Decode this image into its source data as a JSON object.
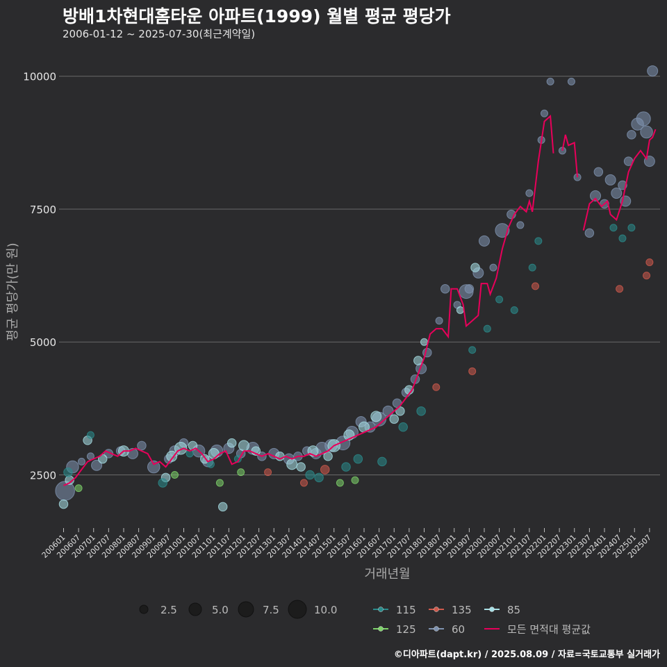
{
  "chart_data": {
    "type": "scatter",
    "title": "방배1차현대홈타운 아파트(1999) 월별 평균 평당가",
    "subtitle": "2006-01-12 ~ 2025-07-30(최근계약일)",
    "xlabel": "거래년월",
    "ylabel": "평균 평당가(만 원)",
    "ylim": [
      1500,
      10650
    ],
    "yticks": [
      2500,
      5000,
      7500,
      10000
    ],
    "xticks": [
      "200601",
      "200607",
      "200701",
      "200707",
      "200801",
      "200807",
      "200901",
      "200907",
      "201001",
      "201007",
      "201101",
      "201107",
      "201201",
      "201207",
      "201301",
      "201307",
      "201401",
      "201407",
      "201501",
      "201507",
      "201601",
      "201607",
      "201701",
      "201707",
      "201801",
      "201807",
      "201901",
      "201907",
      "202001",
      "202007",
      "202101",
      "202107",
      "202201",
      "202207",
      "202301",
      "202307",
      "202401",
      "202407",
      "202501",
      "202507"
    ],
    "size_legend": {
      "values": [
        "2.5",
        "5.0",
        "7.5",
        "10.0"
      ]
    },
    "color_legend": [
      {
        "name": "115",
        "color": "#2a8c8c"
      },
      {
        "name": "135",
        "color": "#d05a4c"
      },
      {
        "name": "85",
        "color": "#a8e0e6"
      },
      {
        "name": "125",
        "color": "#7ed36a"
      },
      {
        "name": "60",
        "color": "#7f93b0"
      },
      {
        "name": "모든 면적대 평균값",
        "color": "#e8005a"
      }
    ],
    "series": [
      {
        "name": "60",
        "points": [
          [
            2006.05,
            2200,
            9
          ],
          [
            2006.3,
            2650,
            5
          ],
          [
            2006.6,
            2750,
            2
          ],
          [
            2006.9,
            2850,
            2
          ],
          [
            2007.1,
            2680,
            4
          ],
          [
            2007.5,
            2900,
            3
          ],
          [
            2007.9,
            2950,
            3
          ],
          [
            2008.3,
            2900,
            4
          ],
          [
            2008.6,
            3050,
            3
          ],
          [
            2009.0,
            2650,
            5
          ],
          [
            2009.5,
            2800,
            3
          ],
          [
            2009.7,
            2950,
            4
          ],
          [
            2010.0,
            3100,
            3
          ],
          [
            2010.5,
            2950,
            5
          ],
          [
            2010.8,
            2750,
            4
          ],
          [
            2011.1,
            2950,
            5
          ],
          [
            2011.5,
            3000,
            4
          ],
          [
            2011.9,
            2900,
            3
          ],
          [
            2012.3,
            3000,
            5
          ],
          [
            2012.6,
            2850,
            3
          ],
          [
            2013.0,
            2900,
            4
          ],
          [
            2013.5,
            2800,
            4
          ],
          [
            2013.8,
            2850,
            3
          ],
          [
            2014.1,
            2950,
            3
          ],
          [
            2014.4,
            2900,
            4
          ],
          [
            2014.6,
            3000,
            5
          ],
          [
            2014.9,
            3050,
            5
          ],
          [
            2015.3,
            3100,
            6
          ],
          [
            2015.6,
            3300,
            5
          ],
          [
            2015.9,
            3500,
            4
          ],
          [
            2016.2,
            3400,
            4
          ],
          [
            2016.5,
            3550,
            6
          ],
          [
            2016.8,
            3700,
            4
          ],
          [
            2017.1,
            3850,
            3
          ],
          [
            2017.4,
            4050,
            3
          ],
          [
            2017.7,
            4300,
            3
          ],
          [
            2017.9,
            4500,
            4
          ],
          [
            2018.1,
            4800,
            3
          ],
          [
            2018.7,
            6000,
            3
          ],
          [
            2018.5,
            5400,
            2
          ],
          [
            2019.1,
            5700,
            2
          ],
          [
            2019.4,
            5950,
            6
          ],
          [
            2019.5,
            6000,
            3
          ],
          [
            2019.8,
            6300,
            4
          ],
          [
            2020.0,
            6900,
            4
          ],
          [
            2020.3,
            6400,
            2
          ],
          [
            2020.6,
            7100,
            6
          ],
          [
            2020.9,
            7400,
            3
          ],
          [
            2021.2,
            7200,
            2
          ],
          [
            2021.5,
            7800,
            2
          ],
          [
            2021.9,
            8800,
            2
          ],
          [
            2022.0,
            9300,
            2
          ],
          [
            2022.2,
            9900,
            2
          ],
          [
            2022.6,
            8600,
            2
          ],
          [
            2022.9,
            9900,
            2
          ],
          [
            2023.1,
            8100,
            2
          ],
          [
            2023.5,
            7050,
            3
          ],
          [
            2023.7,
            7750,
            4
          ],
          [
            2023.8,
            8200,
            3
          ],
          [
            2024.0,
            7600,
            3
          ],
          [
            2024.2,
            8050,
            4
          ],
          [
            2024.4,
            7800,
            4
          ],
          [
            2024.6,
            7950,
            3
          ],
          [
            2024.7,
            7650,
            4
          ],
          [
            2024.8,
            8400,
            3
          ],
          [
            2024.9,
            8900,
            3
          ],
          [
            2025.1,
            9100,
            5
          ],
          [
            2025.3,
            9200,
            6
          ],
          [
            2025.4,
            8950,
            5
          ],
          [
            2025.5,
            8400,
            4
          ],
          [
            2025.6,
            10100,
            4
          ]
        ]
      },
      {
        "name": "85",
        "points": [
          [
            2006.0,
            1950,
            3
          ],
          [
            2006.2,
            2400,
            3
          ],
          [
            2006.8,
            3150,
            3
          ],
          [
            2007.3,
            2800,
            3
          ],
          [
            2008.0,
            2950,
            4
          ],
          [
            2009.4,
            2450,
            3
          ],
          [
            2009.6,
            2850,
            4
          ],
          [
            2009.9,
            3000,
            5
          ],
          [
            2010.3,
            3050,
            3
          ],
          [
            2010.7,
            2800,
            3
          ],
          [
            2011.0,
            2900,
            4
          ],
          [
            2011.3,
            1900,
            3
          ],
          [
            2011.6,
            3100,
            3
          ],
          [
            2012.0,
            3050,
            4
          ],
          [
            2012.4,
            2950,
            3
          ],
          [
            2013.2,
            2850,
            3
          ],
          [
            2013.6,
            2700,
            4
          ],
          [
            2013.9,
            2650,
            3
          ],
          [
            2014.3,
            2950,
            4
          ],
          [
            2014.8,
            2850,
            3
          ],
          [
            2015.0,
            3050,
            5
          ],
          [
            2015.5,
            3250,
            4
          ],
          [
            2016.0,
            3400,
            4
          ],
          [
            2016.4,
            3600,
            4
          ],
          [
            2017.0,
            3550,
            3
          ],
          [
            2017.2,
            3700,
            3
          ],
          [
            2017.5,
            4100,
            3
          ],
          [
            2017.8,
            4650,
            3
          ],
          [
            2018.0,
            5000,
            2
          ],
          [
            2019.2,
            5600,
            2
          ],
          [
            2019.7,
            6400,
            3
          ]
        ]
      },
      {
        "name": "115",
        "points": [
          [
            2006.15,
            2550,
            3
          ],
          [
            2006.9,
            3250,
            2
          ],
          [
            2009.3,
            2350,
            3
          ],
          [
            2010.2,
            2900,
            2
          ],
          [
            2010.9,
            2700,
            2
          ],
          [
            2011.8,
            2800,
            2
          ],
          [
            2014.2,
            2500,
            3
          ],
          [
            2014.5,
            2450,
            3
          ],
          [
            2015.4,
            2650,
            3
          ],
          [
            2015.8,
            2800,
            3
          ],
          [
            2016.6,
            2750,
            3
          ],
          [
            2017.3,
            3400,
            3
          ],
          [
            2017.9,
            3700,
            3
          ],
          [
            2019.6,
            4850,
            2
          ],
          [
            2020.1,
            5250,
            2
          ],
          [
            2020.5,
            5800,
            2
          ],
          [
            2021.0,
            5600,
            2
          ],
          [
            2021.6,
            6400,
            2
          ],
          [
            2021.8,
            6900,
            2
          ],
          [
            2024.3,
            7150,
            2
          ],
          [
            2024.6,
            6950,
            2
          ],
          [
            2024.9,
            7150,
            2
          ]
        ]
      },
      {
        "name": "135",
        "points": [
          [
            2012.8,
            2550,
            2
          ],
          [
            2014.0,
            2350,
            2
          ],
          [
            2014.7,
            2600,
            3
          ],
          [
            2018.4,
            4150,
            2
          ],
          [
            2019.6,
            4450,
            2
          ],
          [
            2021.7,
            6050,
            2
          ],
          [
            2024.5,
            6000,
            2
          ],
          [
            2025.4,
            6250,
            2
          ],
          [
            2025.5,
            6500,
            2
          ]
        ]
      },
      {
        "name": "125",
        "points": [
          [
            2006.5,
            2250,
            2
          ],
          [
            2009.7,
            2500,
            2
          ],
          [
            2011.2,
            2350,
            2
          ],
          [
            2011.9,
            2550,
            2
          ],
          [
            2015.2,
            2350,
            2
          ],
          [
            2015.7,
            2400,
            2
          ]
        ]
      }
    ],
    "mean_line": [
      [
        [
          2006.0,
          2300
        ],
        [
          2006.2,
          2350
        ],
        [
          2006.4,
          2450
        ],
        [
          2006.6,
          2600
        ],
        [
          2006.8,
          2750
        ],
        [
          2007.0,
          2800
        ],
        [
          2007.2,
          2850
        ],
        [
          2007.4,
          2950
        ],
        [
          2007.6,
          2900
        ],
        [
          2007.8,
          2850
        ],
        [
          2008.0,
          2950
        ],
        [
          2008.2,
          2950
        ],
        [
          2008.4,
          3000
        ],
        [
          2008.6,
          2950
        ],
        [
          2008.8,
          2900
        ],
        [
          2009.0,
          2700
        ],
        [
          2009.2,
          2750
        ],
        [
          2009.4,
          2650
        ],
        [
          2009.6,
          2800
        ],
        [
          2009.8,
          2950
        ],
        [
          2010.0,
          3000
        ],
        [
          2010.2,
          2950
        ],
        [
          2010.4,
          3000
        ],
        [
          2010.6,
          2900
        ],
        [
          2010.8,
          2750
        ],
        [
          2011.0,
          2800
        ],
        [
          2011.2,
          2900
        ],
        [
          2011.4,
          2950
        ],
        [
          2011.6,
          2700
        ],
        [
          2011.8,
          2750
        ],
        [
          2012.0,
          2950
        ],
        [
          2012.2,
          2950
        ],
        [
          2012.4,
          2900
        ],
        [
          2012.6,
          2850
        ],
        [
          2012.8,
          2900
        ],
        [
          2013.0,
          2850
        ],
        [
          2013.2,
          2800
        ],
        [
          2013.4,
          2850
        ],
        [
          2013.6,
          2800
        ],
        [
          2013.8,
          2850
        ],
        [
          2014.0,
          2850
        ],
        [
          2014.2,
          2900
        ],
        [
          2014.4,
          2850
        ],
        [
          2014.6,
          2900
        ],
        [
          2014.8,
          2950
        ],
        [
          2015.0,
          3050
        ],
        [
          2015.2,
          3100
        ],
        [
          2015.4,
          3150
        ],
        [
          2015.6,
          3200
        ],
        [
          2015.8,
          3250
        ],
        [
          2016.0,
          3300
        ],
        [
          2016.2,
          3350
        ],
        [
          2016.4,
          3400
        ],
        [
          2016.6,
          3500
        ],
        [
          2016.8,
          3600
        ],
        [
          2017.0,
          3700
        ],
        [
          2017.2,
          3800
        ],
        [
          2017.4,
          3950
        ],
        [
          2017.6,
          4100
        ],
        [
          2017.8,
          4400
        ],
        [
          2018.0,
          4700
        ],
        [
          2018.2,
          5150
        ],
        [
          2018.4,
          5250
        ],
        [
          2018.6,
          5250
        ],
        [
          2018.8,
          5100
        ],
        [
          2018.9,
          6000
        ],
        [
          2019.1,
          6000
        ],
        [
          2019.3,
          5700
        ],
        [
          2019.4,
          5300
        ],
        [
          2019.6,
          5400
        ],
        [
          2019.8,
          5500
        ],
        [
          2019.9,
          6100
        ],
        [
          2020.1,
          6100
        ],
        [
          2020.2,
          5900
        ],
        [
          2020.4,
          6200
        ],
        [
          2020.6,
          6750
        ],
        [
          2020.8,
          7150
        ],
        [
          2021.0,
          7400
        ],
        [
          2021.2,
          7550
        ],
        [
          2021.4,
          7450
        ],
        [
          2021.5,
          7650
        ],
        [
          2021.6,
          7450
        ],
        [
          2021.8,
          8400
        ],
        [
          2022.0,
          9150
        ],
        [
          2022.2,
          9250
        ],
        [
          2022.3,
          8550
        ]
      ],
      [
        [
          2022.6,
          8600
        ],
        [
          2022.7,
          8900
        ],
        [
          2022.8,
          8700
        ],
        [
          2023.0,
          8750
        ],
        [
          2023.1,
          8100
        ]
      ],
      [
        [
          2023.3,
          7100
        ],
        [
          2023.5,
          7600
        ],
        [
          2023.7,
          7700
        ],
        [
          2023.9,
          7550
        ],
        [
          2024.1,
          7650
        ],
        [
          2024.2,
          7400
        ],
        [
          2024.4,
          7300
        ],
        [
          2024.6,
          7650
        ],
        [
          2024.8,
          8200
        ],
        [
          2025.0,
          8450
        ],
        [
          2025.2,
          8600
        ],
        [
          2025.4,
          8450
        ],
        [
          2025.5,
          8800
        ],
        [
          2025.6,
          8850
        ],
        [
          2025.7,
          9000
        ]
      ]
    ]
  }
}
